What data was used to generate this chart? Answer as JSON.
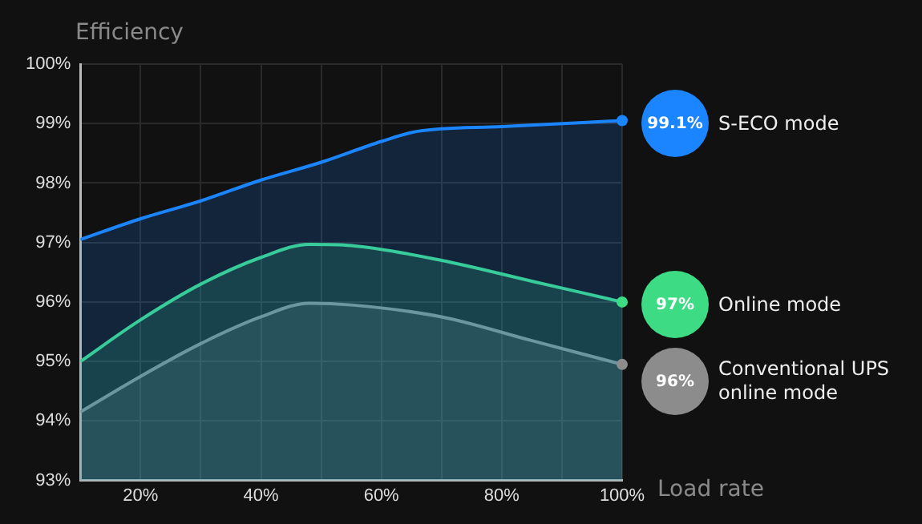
{
  "chart_data": {
    "type": "area",
    "xlabel": "Load rate",
    "ylabel": "Efficiency",
    "xlim": [
      10,
      100
    ],
    "xticks": [
      {
        "value": 20,
        "label": "20%"
      },
      {
        "value": 30,
        "label": null
      },
      {
        "value": 40,
        "label": "40%"
      },
      {
        "value": 50,
        "label": null
      },
      {
        "value": 60,
        "label": "60%"
      },
      {
        "value": 70,
        "label": null
      },
      {
        "value": 80,
        "label": "80%"
      },
      {
        "value": 90,
        "label": null
      },
      {
        "value": 100,
        "label": "100%"
      }
    ],
    "ylim": [
      93,
      100
    ],
    "yticks": [
      {
        "value": 93,
        "label": "93%"
      },
      {
        "value": 94,
        "label": "94%"
      },
      {
        "value": 95,
        "label": "95%"
      },
      {
        "value": 96,
        "label": "96%"
      },
      {
        "value": 97,
        "label": "97%"
      },
      {
        "value": 98,
        "label": "98%"
      },
      {
        "value": 99,
        "label": "99%"
      },
      {
        "value": 100,
        "label": "100%"
      }
    ],
    "grid": true,
    "legend": "right",
    "marker": "none",
    "annotations": [
      "99.1%",
      "97%",
      "96%"
    ],
    "series": [
      {
        "name": "S-ECO mode",
        "color": "#1a85ff",
        "x": [
          10,
          20,
          30,
          40,
          50,
          60,
          66,
          80,
          100
        ],
        "values": [
          97.05,
          97.4,
          97.7,
          98.05,
          98.35,
          98.7,
          98.87,
          98.95,
          99.05
        ]
      },
      {
        "name": "Online mode",
        "color": "#3ddc84",
        "x": [
          10,
          20,
          30,
          40,
          48,
          55,
          70,
          85,
          100
        ],
        "values": [
          95.0,
          95.7,
          96.3,
          96.75,
          96.97,
          96.95,
          96.7,
          96.35,
          96.0
        ]
      },
      {
        "name": "Conventional UPS online mode",
        "color": "#8c8c8c",
        "x": [
          10,
          20,
          30,
          40,
          48,
          55,
          70,
          85,
          100
        ],
        "values": [
          94.15,
          94.75,
          95.3,
          95.75,
          95.98,
          95.95,
          95.75,
          95.35,
          94.95
        ]
      }
    ]
  }
}
